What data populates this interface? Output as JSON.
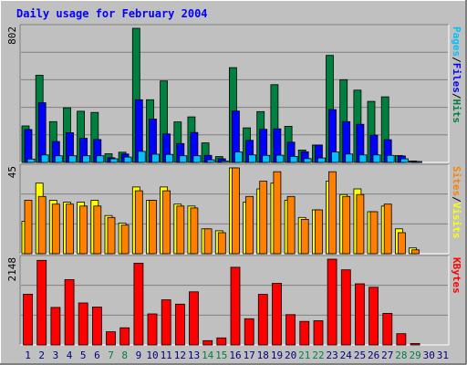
{
  "chart_data": {
    "type": "bar",
    "title": "Daily usage for February 2004",
    "days": [
      "1",
      "2",
      "3",
      "4",
      "5",
      "6",
      "7",
      "8",
      "9",
      "10",
      "11",
      "12",
      "13",
      "14",
      "15",
      "16",
      "17",
      "18",
      "19",
      "20",
      "21",
      "22",
      "23",
      "24",
      "25",
      "26",
      "27",
      "28",
      "29",
      "30",
      "31"
    ],
    "weekend_days": [
      "7",
      "8",
      "14",
      "15",
      "21",
      "22",
      "28",
      "29"
    ],
    "panels": [
      {
        "id": "hits-files-pages",
        "ymax_label": "802",
        "ymax": 802,
        "series": [
          {
            "name": "Hits",
            "color": "#008040",
            "values": [
              218,
              521,
              244,
              327,
              306,
              299,
              52,
              61,
              802,
              375,
              487,
              242,
              272,
              117,
              35,
              567,
              207,
              304,
              465,
              216,
              74,
              104,
              640,
              495,
              432,
              365,
              392,
              41,
              9,
              0,
              0
            ]
          },
          {
            "name": "Files",
            "color": "#0000FF",
            "values": [
              197,
              357,
              125,
              178,
              144,
              137,
              28,
              50,
              375,
              259,
              170,
              113,
              179,
              42,
              22,
              307,
              132,
              198,
              201,
              121,
              64,
              104,
              316,
              244,
              228,
              163,
              136,
              39,
              6,
              0,
              0
            ]
          },
          {
            "name": "Pages",
            "color": "#00C0FF",
            "values": [
              20,
              45,
              40,
              40,
              40,
              40,
              22,
              32,
              66,
              49,
              48,
              40,
              40,
              16,
              8,
              63,
              45,
              42,
              43,
              36,
              23,
              27,
              62,
              50,
              45,
              45,
              42,
              22,
              5,
              0,
              0
            ]
          }
        ],
        "axis_label_parts": [
          "Pages",
          "/",
          "Files",
          "/",
          "Hits"
        ],
        "axis_label_colors": [
          "#00C0FF",
          "#000000",
          "#0000FF",
          "#000000",
          "#008040"
        ]
      },
      {
        "id": "visits-sites",
        "ymax_label": "45",
        "ymax": 45,
        "series": [
          {
            "name": "Visits",
            "color": "#FFFF00",
            "values": [
              17,
              37,
              28,
              27,
              27,
              28,
              20,
              16,
              35,
              28,
              35,
              26,
              25,
              13,
              12,
              45,
              27,
              34,
              37,
              28,
              19,
              23,
              38,
              31,
              34,
              22,
              25,
              13,
              3,
              0,
              0
            ]
          },
          {
            "name": "Sites",
            "color": "#FF8000",
            "values": [
              28,
              30,
              26,
              26,
              25,
              25,
              19,
              15,
              33,
              28,
              33,
              25,
              24,
              13,
              11,
              45,
              30,
              38,
              43,
              30,
              18,
              23,
              43,
              30,
              31,
              22,
              26,
              11,
              2,
              0,
              0
            ]
          }
        ],
        "axis_label_parts": [
          "Sites",
          "/",
          "Visits"
        ],
        "axis_label_colors": [
          "#FF8000",
          "#000000",
          "#FFFF00"
        ]
      },
      {
        "id": "kbytes",
        "ymax_label": "2148",
        "ymax": 2148,
        "series": [
          {
            "name": "KBytes",
            "color": "#FF0000",
            "values": [
              1270,
              2118,
              940,
              1637,
              1052,
              948,
              330,
              430,
              2047,
              777,
              1129,
              1022,
              1331,
              108,
              175,
              1945,
              655,
              1265,
              1543,
              758,
              590,
              606,
              2148,
              1880,
              1530,
              1445,
              790,
              280,
              35,
              0,
              0
            ]
          }
        ],
        "axis_label_parts": [
          "KBytes"
        ],
        "axis_label_colors": [
          "#FF0000"
        ]
      }
    ],
    "colors": {
      "background": "#C0C0C0",
      "plot_background": "#C0C0C0",
      "title": "#0000FF",
      "day_label": "#000080",
      "weekend_label": "#008040",
      "grid": "#808080"
    }
  }
}
